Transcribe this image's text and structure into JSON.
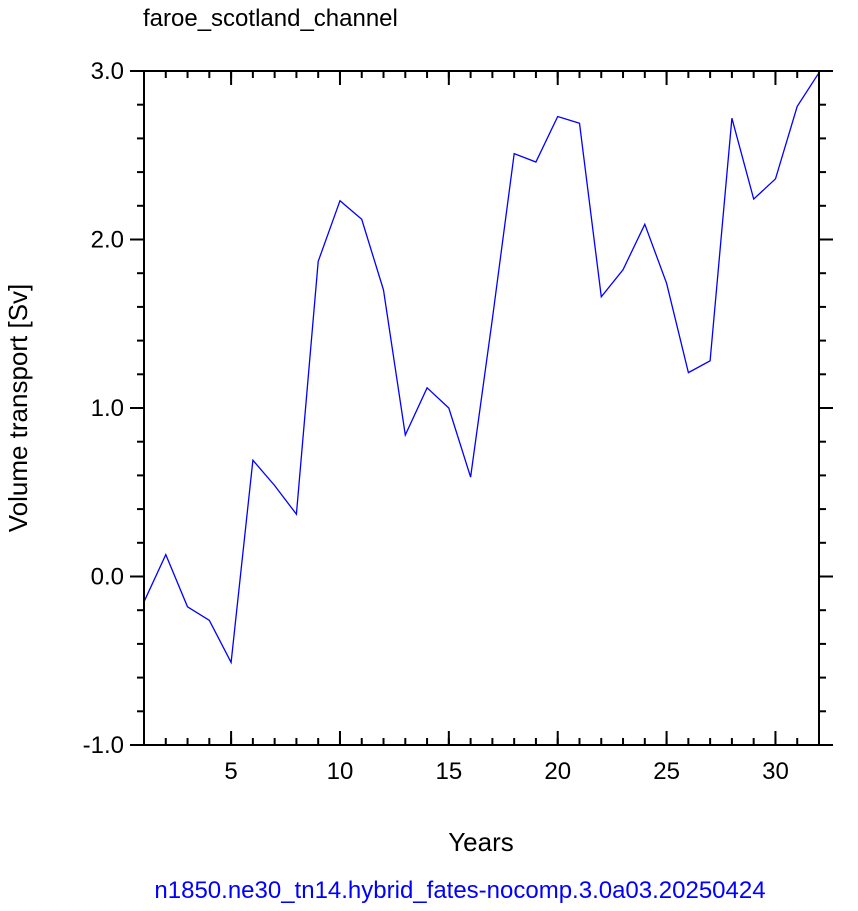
{
  "chart_data": {
    "type": "line",
    "title": "faroe_scotland_channel",
    "xlabel": "Years",
    "ylabel": "Volume transport [Sv]",
    "footer": "n1850.ne30_tn14.hybrid_fates-nocomp.3.0a03.20250424",
    "xlim": [
      1,
      32
    ],
    "ylim": [
      -1.0,
      3.0
    ],
    "xticks": [
      {
        "value": 5,
        "label": "5"
      },
      {
        "value": 10,
        "label": "10"
      },
      {
        "value": 15,
        "label": "15"
      },
      {
        "value": 20,
        "label": "20"
      },
      {
        "value": 25,
        "label": "25"
      },
      {
        "value": 30,
        "label": "30"
      }
    ],
    "yticks": [
      {
        "value": -1.0,
        "label": "-1.0"
      },
      {
        "value": 0.0,
        "label": "0.0"
      },
      {
        "value": 1.0,
        "label": "1.0"
      },
      {
        "value": 2.0,
        "label": "2.0"
      },
      {
        "value": 3.0,
        "label": "3.0"
      }
    ],
    "x_minor_step": 1,
    "y_minor_step": 0.2,
    "series": [
      {
        "color": "#0000ff",
        "x": [
          1,
          2,
          3,
          4,
          5,
          6,
          7,
          8,
          9,
          10,
          11,
          12,
          13,
          14,
          15,
          16,
          17,
          18,
          19,
          20,
          21,
          22,
          23,
          24,
          25,
          26,
          27,
          28,
          29,
          30,
          31,
          32
        ],
        "values": [
          -0.15,
          0.13,
          -0.18,
          -0.26,
          -0.51,
          0.69,
          0.54,
          0.37,
          1.87,
          2.23,
          2.12,
          1.7,
          0.84,
          1.12,
          1.0,
          0.59,
          1.53,
          2.51,
          2.46,
          2.73,
          2.69,
          1.66,
          1.82,
          2.09,
          1.74,
          1.21,
          1.28,
          2.72,
          2.24,
          2.36,
          2.79,
          2.99
        ]
      }
    ],
    "colors": {
      "line": "#0000ff",
      "footer": "#0000ff",
      "axes": "#000000"
    }
  }
}
